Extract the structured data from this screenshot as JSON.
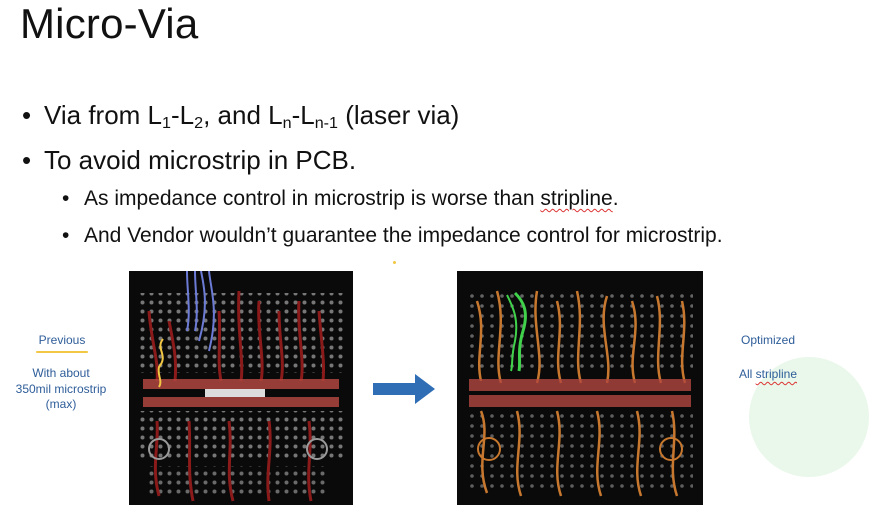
{
  "slide": {
    "title": "Micro-Via",
    "bullet1": {
      "prefix": "Via from L",
      "sub1": "1",
      "dash1": "-L",
      "sub2": "2",
      "mid": ", and L",
      "sub3": "n",
      "dash2": "-L",
      "sub4": "n-1",
      "suffix": " (laser via)"
    },
    "bullet2": "To avoid microstrip in PCB.",
    "sub_bullet1": {
      "text": "As impedance control in microstrip is worse than ",
      "underlined": "stripline",
      "end": "."
    },
    "sub_bullet2": "And Vendor wouldn’t guarantee the impedance control for microstrip.",
    "bullet_char": "•",
    "left_caption": {
      "label": "Previous",
      "note_line1": "With about",
      "note_line2": "350mil microstrip",
      "note_line3": "(max)"
    },
    "right_caption": {
      "label": "Optimized",
      "note_prefix": "All ",
      "note_underlined": "stripline"
    },
    "colors": {
      "accent_blue": "#2e5d99",
      "arrow_blue": "#2f6db5",
      "highlight_yellow": "#f2c744",
      "pcb_background": "#0a0a0a",
      "trace_red": "#8b1a1a",
      "trace_orange": "#c8782e",
      "trace_green": "#3fd24a",
      "trace_blue": "#6b7bd6"
    }
  }
}
